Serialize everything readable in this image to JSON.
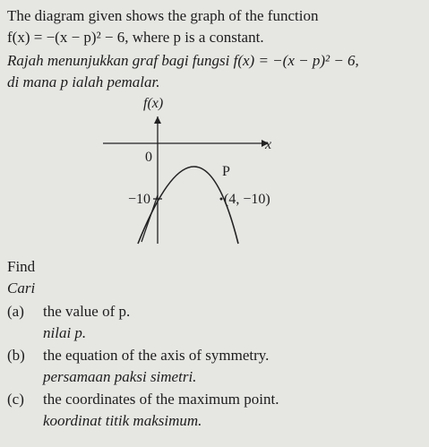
{
  "question": {
    "intro": [
      "The diagram given shows the graph of the function",
      "f(x) = −(x − p)² − 6, where p is a constant."
    ],
    "intro_malay": [
      "Rajah menunjukkan graf bagi fungsi f(x) = −(x − p)² − 6,",
      "di mana p ialah pemalar."
    ],
    "diagram": {
      "y_label": "f(x)",
      "x_label": "x",
      "origin": "0",
      "y_intercept": "−10",
      "point": "(4, −10)",
      "handwritten": "P"
    },
    "find": "Find",
    "find_malay": "Cari",
    "parts": [
      {
        "label": "(a)",
        "text": "the value of p.",
        "malay": "nilai p."
      },
      {
        "label": "(b)",
        "text": "the equation of the axis of symmetry.",
        "malay": "persamaan paksi simetri."
      },
      {
        "label": "(c)",
        "text": "the coordinates of the maximum point.",
        "malay": "koordinat titik maksimum."
      }
    ]
  }
}
